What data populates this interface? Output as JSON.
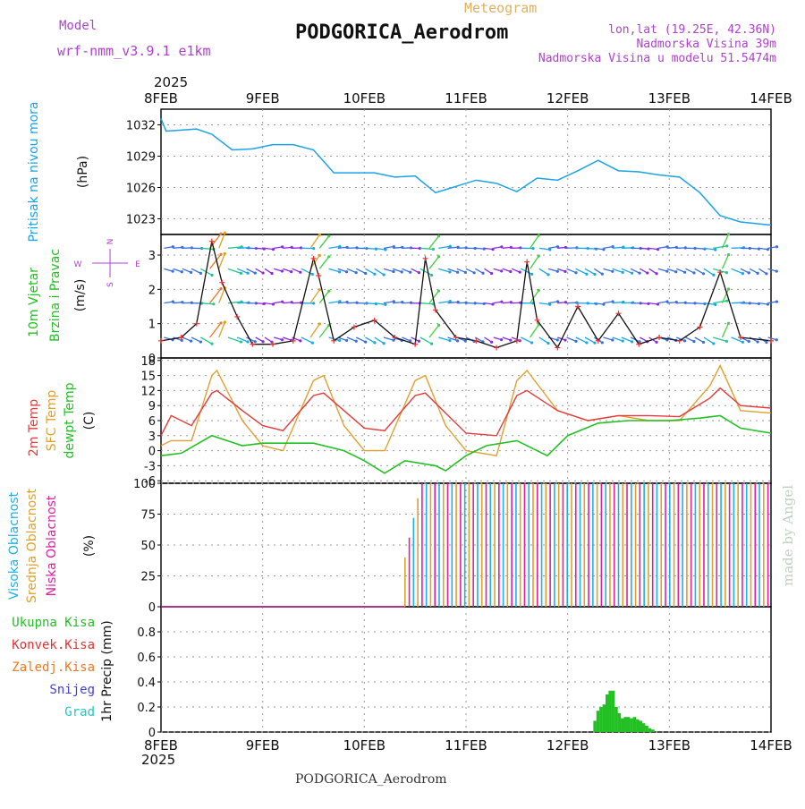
{
  "header": {
    "model_label": "Model",
    "model_name": "wrf-nmm_v3.9.1  e1km",
    "meteogram_label": "Meteogram",
    "station_title": "PODGORICA_Aerodrom",
    "lonlat": "lon,lat (19.25E, 42.36N)",
    "elevation": "Nadmorska Visina 39m",
    "model_elevation": "Nadmorska Visina u modelu 51.5474m",
    "year_top": "2025",
    "year_bottom": "2025",
    "footer_title": "PODGORICA_Aerodrom",
    "watermark": "made by Angel"
  },
  "colors": {
    "pressure": "#1aa3e6",
    "temp2m": "#e33b3b",
    "sfc_temp": "#e0a030",
    "dewpt": "#22c022",
    "high_cloud": "#20b0e8",
    "mid_cloud": "#e0a030",
    "low_cloud": "#e020a0",
    "total_precip": "#22c022",
    "conv_precip": "#e83030",
    "frz_precip": "#f07820",
    "snow": "#4040e0",
    "hail": "#20c8c8",
    "wind_label": "#22c022",
    "purple": "#b040d0"
  },
  "chart_data": [
    {
      "type": "line",
      "panel": "pressure",
      "ylabel_lines": [
        "Pritisak na nivou mora"
      ],
      "unit": "(hPa)",
      "ylim": [
        1021.5,
        1033.5
      ],
      "yticks": [
        1023,
        1026,
        1029,
        1032
      ],
      "x_dates": [
        "8FEB",
        "9FEB",
        "10FEB",
        "11FEB",
        "12FEB",
        "13FEB",
        "14FEB"
      ],
      "series": [
        {
          "x": [
            0.0,
            0.05,
            0.2,
            0.35,
            0.5,
            0.7,
            0.9,
            1.1,
            1.3,
            1.5,
            1.7,
            1.9,
            2.1,
            2.3,
            2.5,
            2.7,
            2.9,
            3.1,
            3.3,
            3.5,
            3.7,
            3.9,
            4.1,
            4.3,
            4.5,
            4.7,
            4.9,
            5.1,
            5.3,
            5.5,
            5.7,
            5.9,
            6.0
          ],
          "y": [
            1032.6,
            1031.4,
            1031.5,
            1031.6,
            1031.1,
            1029.6,
            1029.7,
            1030.1,
            1030.1,
            1029.6,
            1027.4,
            1027.4,
            1027.4,
            1027.0,
            1027.1,
            1025.5,
            1026.1,
            1026.7,
            1026.4,
            1025.6,
            1026.9,
            1026.7,
            1027.6,
            1028.6,
            1027.6,
            1027.5,
            1027.2,
            1027.0,
            1025.5,
            1023.3,
            1022.7,
            1022.5,
            1022.4
          ]
        }
      ]
    },
    {
      "type": "line",
      "panel": "wind",
      "ylabel_lines": [
        "10m Vjetar",
        "Brzina i Pravac"
      ],
      "unit": "(m/s)",
      "compass": {
        "n": "N",
        "s": "S",
        "e": "E",
        "w": "W"
      },
      "ylim": [
        0,
        3.6
      ],
      "yticks": [
        0,
        1,
        2,
        3
      ],
      "series": [
        {
          "x": [
            0.0,
            0.2,
            0.35,
            0.5,
            0.6,
            0.75,
            0.9,
            1.1,
            1.3,
            1.5,
            1.55,
            1.7,
            1.9,
            2.1,
            2.3,
            2.5,
            2.6,
            2.7,
            2.9,
            3.1,
            3.3,
            3.5,
            3.6,
            3.7,
            3.9,
            4.1,
            4.3,
            4.5,
            4.7,
            4.9,
            5.1,
            5.3,
            5.5,
            5.7,
            6.0
          ],
          "y": [
            0.5,
            0.6,
            1.0,
            3.4,
            2.2,
            1.2,
            0.4,
            0.4,
            0.5,
            2.9,
            2.4,
            0.5,
            0.9,
            1.1,
            0.6,
            0.4,
            2.9,
            1.4,
            0.6,
            0.5,
            0.3,
            0.5,
            2.8,
            1.1,
            0.3,
            1.5,
            0.5,
            1.3,
            0.4,
            0.6,
            0.5,
            0.9,
            2.5,
            0.6,
            0.5
          ]
        }
      ]
    },
    {
      "type": "line",
      "panel": "temperature",
      "ylabel_lines": [
        "2m Temp",
        "SFC Temp",
        "dewpt Temp"
      ],
      "unit": "(C)",
      "ylim": [
        -6.5,
        18.5
      ],
      "yticks": [
        -6,
        -3,
        0,
        3,
        6,
        9,
        12,
        15,
        18
      ],
      "series": [
        {
          "name": "2m Temp",
          "x": [
            0.0,
            0.1,
            0.3,
            0.5,
            0.55,
            0.8,
            1.0,
            1.2,
            1.5,
            1.6,
            1.8,
            2.0,
            2.2,
            2.5,
            2.6,
            2.8,
            3.0,
            3.3,
            3.5,
            3.6,
            3.9,
            4.2,
            4.5,
            4.8,
            5.1,
            5.4,
            5.5,
            5.7,
            6.0
          ],
          "y": [
            3,
            7,
            5,
            11.5,
            12,
            8,
            5,
            4,
            11,
            11.5,
            8,
            4.5,
            4,
            11,
            11.5,
            7.5,
            3.5,
            3,
            11,
            12,
            8,
            6,
            7,
            7,
            6.8,
            10.5,
            12.5,
            9,
            8.5
          ]
        },
        {
          "name": "SFC Temp",
          "x": [
            0.0,
            0.1,
            0.3,
            0.5,
            0.55,
            0.8,
            1.0,
            1.2,
            1.5,
            1.6,
            1.8,
            2.0,
            2.2,
            2.5,
            2.6,
            2.8,
            3.0,
            3.3,
            3.5,
            3.6,
            3.9,
            4.2,
            4.5,
            4.8,
            5.1,
            5.4,
            5.5,
            5.7,
            6.0
          ],
          "y": [
            1,
            2,
            2,
            15,
            16,
            6,
            1,
            0,
            14,
            15,
            5,
            0,
            0,
            14,
            15,
            5,
            0,
            -1,
            14,
            16,
            8,
            6,
            7,
            6,
            6,
            13,
            17,
            8,
            7.5
          ]
        },
        {
          "name": "dewpt Temp",
          "x": [
            0.0,
            0.2,
            0.5,
            0.8,
            1.0,
            1.3,
            1.5,
            1.8,
            2.0,
            2.2,
            2.4,
            2.7,
            2.8,
            3.0,
            3.2,
            3.5,
            3.8,
            4.0,
            4.3,
            4.6,
            5.0,
            5.3,
            5.5,
            5.7,
            6.0
          ],
          "y": [
            -1,
            -0.5,
            3,
            1,
            1.5,
            1.5,
            1.5,
            0,
            -2,
            -4.5,
            -2,
            -3,
            -4,
            -1,
            1,
            2,
            -1,
            3,
            5.5,
            6,
            6,
            6.5,
            7,
            4.5,
            3.5
          ]
        }
      ]
    },
    {
      "type": "bar",
      "panel": "cloud",
      "ylabel_lines": [
        "Visoka Oblacnost",
        "Srednja Oblacnost",
        "Niska Oblacnost"
      ],
      "unit": "(%)",
      "ylim": [
        0,
        100
      ],
      "yticks": [
        0,
        25,
        50,
        75,
        100
      ],
      "cloud_start_day": 2.4,
      "cloud_end_day": 6.0,
      "series": [
        {
          "name": "Visoka Oblacnost",
          "value": 100
        },
        {
          "name": "Srednja Oblacnost",
          "value": 100
        },
        {
          "name": "Niska Oblacnost",
          "value": 100
        }
      ]
    },
    {
      "type": "bar",
      "panel": "precip",
      "ylabel_lines": [
        "1hr Precip (mm)"
      ],
      "legend": [
        "Ukupna Kisa",
        "Konvek.Kisa",
        "Zaledj.Kisa",
        "Snijeg",
        "Grad"
      ],
      "ylim": [
        0,
        1.0
      ],
      "yticks": [
        0,
        0.2,
        0.4,
        0.6,
        0.8
      ],
      "x": [
        4.27,
        4.3,
        4.33,
        4.36,
        4.39,
        4.42,
        4.45,
        4.48,
        4.51,
        4.54,
        4.57,
        4.6,
        4.63,
        4.66,
        4.69,
        4.72,
        4.75,
        4.78,
        4.81,
        4.84
      ],
      "values": [
        0.09,
        0.17,
        0.2,
        0.22,
        0.3,
        0.33,
        0.33,
        0.2,
        0.15,
        0.11,
        0.12,
        0.12,
        0.11,
        0.12,
        0.1,
        0.09,
        0.07,
        0.05,
        0.03,
        0.02
      ]
    }
  ]
}
